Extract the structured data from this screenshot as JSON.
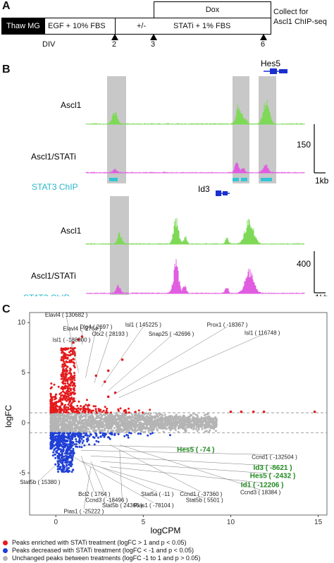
{
  "panelA": {
    "letter": "A",
    "thaw_label": "Thaw MG",
    "egf_label": "EGF + 10% FBS",
    "pm_label": "+/-",
    "stati_label": "STATi + 1% FBS",
    "dox_label": "Dox",
    "collect_line1": "Collect for",
    "collect_line2": "Ascl1 ChIP-seq",
    "div_label": "DIV",
    "ticks": [
      "2",
      "3",
      "6"
    ]
  },
  "panelB": {
    "letter": "B",
    "gene1": "Hes5",
    "gene2": "Id3",
    "track_ascl1": "Ascl1",
    "track_ascl1_stati": "Ascl1/STATi",
    "track_chip": "STAT3 ChIP",
    "scale1": "150",
    "scale2": "400",
    "kb_label": "1kb",
    "colors": {
      "ascl1": "#7ed957",
      "stati": "#e05ce0",
      "chip": "#33c6d6",
      "shade": "#c8c8c8"
    }
  },
  "panelC": {
    "letter": "C",
    "xlabel": "logCPM",
    "ylabel": "logFC",
    "legend": [
      {
        "color": "#e41a1c",
        "text": "Peaks enriched with STATi treatment (logFC > 1 and p < 0.05)"
      },
      {
        "color": "#1f3fd6",
        "text": "Peaks decreased with STATi treatment (logFC < -1 and p < 0.05)"
      },
      {
        "color": "#b4b4b4",
        "text": "Unchanged peaks between treatments (logFC -1 to 1 and p > 0.05)"
      }
    ],
    "up_labels": [
      {
        "text": "Elavl4 ( 130682 )",
        "x": 0.6,
        "y": 10.8
      },
      {
        "text": "Isl1 ( -188000 )",
        "x": 0.9,
        "y": 8.3
      },
      {
        "text": "Elavl4 ( -2764 )",
        "x": 1.5,
        "y": 9.4
      },
      {
        "text": "Dlg4 ( 2697 )",
        "x": 2.3,
        "y": 9.6
      },
      {
        "text": "Otx2 ( 28193 )",
        "x": 3.1,
        "y": 8.9
      },
      {
        "text": "Isl1 ( 145225 )",
        "x": 5.0,
        "y": 9.8
      },
      {
        "text": "Snap25 ( -42696 )",
        "x": 6.6,
        "y": 8.9
      },
      {
        "text": "Prox1 ( -18367 )",
        "x": 9.8,
        "y": 9.8
      },
      {
        "text": "Isl1 ( 116748 )",
        "x": 11.8,
        "y": 9.0
      }
    ],
    "down_labels": [
      {
        "text": "Hes5 ( -74 )",
        "x": 8.0,
        "y": -2.7,
        "green": true
      },
      {
        "text": "Ccnd1 ( -132504 )",
        "x": 12.5,
        "y": -3.4,
        "green": false
      },
      {
        "text": "Id3 ( -8621 )",
        "x": 12.4,
        "y": -4.5,
        "green": true
      },
      {
        "text": "Hes5 ( -2432 )",
        "x": 12.4,
        "y": -5.3,
        "green": true
      },
      {
        "text": "Id1 ( -12206 )",
        "x": 11.8,
        "y": -6.2,
        "green": true
      },
      {
        "text": "Ccnd3 ( 18384 )",
        "x": 11.7,
        "y": -6.9,
        "green": false
      },
      {
        "text": "Stat5b ( 15380 )",
        "x": -0.9,
        "y": -5.9,
        "green": false
      },
      {
        "text": "Bcl2 ( 1764 )",
        "x": 2.2,
        "y": -7.1,
        "green": false
      },
      {
        "text": "Ccnd3 ( -18496 )",
        "x": 2.9,
        "y": -7.7,
        "green": false
      },
      {
        "text": "Stat5a ( -11 )",
        "x": 5.8,
        "y": -7.1,
        "green": false
      },
      {
        "text": "Ccnd1 ( -37360 )",
        "x": 8.3,
        "y": -7.1,
        "green": false
      },
      {
        "text": "Stat5b ( 24366 )",
        "x": 3.8,
        "y": -8.2,
        "green": false
      },
      {
        "text": "Pias1 ( -78104 )",
        "x": 5.6,
        "y": -8.2,
        "green": false
      },
      {
        "text": "Stat5b ( 5501 )",
        "x": 8.5,
        "y": -7.7,
        "green": false
      },
      {
        "text": "Pias1 ( -25222 )",
        "x": 1.6,
        "y": -8.8,
        "green": false
      }
    ]
  },
  "chart_data": {
    "type": "scatter",
    "title": "",
    "xlabel": "logCPM",
    "ylabel": "logFC",
    "xlim": [
      -1.5,
      15.5
    ],
    "ylim": [
      -9.2,
      11
    ],
    "xticks": [
      0,
      5,
      10,
      15
    ],
    "yticks": [
      -5,
      0,
      5,
      10
    ],
    "thresholds": [
      1,
      -1
    ],
    "series": [
      {
        "name": "Peaks enriched with STATi treatment (logFC > 1 and p < 0.05)",
        "color": "#e41a1c"
      },
      {
        "name": "Peaks decreased with STATi treatment (logFC < -1 and p < 0.05)",
        "color": "#1f3fd6"
      },
      {
        "name": "Unchanged peaks between treatments (logFC -1 to 1 and p > 0.05)",
        "color": "#b4b4b4"
      }
    ],
    "outliers": [
      {
        "x": 1.0,
        "y": 8.0
      },
      {
        "x": 1.3,
        "y": 8.3
      },
      {
        "x": 1.5,
        "y": 8.6
      },
      {
        "x": 2.3,
        "y": 4.7
      },
      {
        "x": 3.0,
        "y": 5.2
      },
      {
        "x": 3.8,
        "y": 6.3
      },
      {
        "x": 3.0,
        "y": 2.6
      },
      {
        "x": 3.4,
        "y": 3.0
      },
      {
        "x": 2.8,
        "y": 4.1
      },
      {
        "x": 10.0,
        "y": 1.1
      },
      {
        "x": 10.6,
        "y": 1.1
      },
      {
        "x": 11.3,
        "y": 1.1
      },
      {
        "x": 11.9,
        "y": 1.1
      },
      {
        "x": 14.8,
        "y": 1.1
      }
    ]
  }
}
